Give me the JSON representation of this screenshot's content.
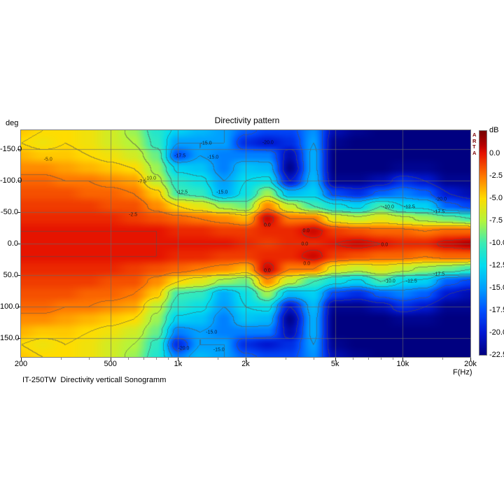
{
  "header": {
    "title": "Directivity pattern",
    "y_unit_label": "deg"
  },
  "footer": {
    "caption": "IT-250TW  Directivity verticall Sonogramm"
  },
  "watermark": {
    "text": "ARTA"
  },
  "axes": {
    "x": {
      "unit_label": "F(Hz)",
      "scale": "log",
      "range_hz": [
        200,
        20000
      ],
      "major_ticks": [
        {
          "f": 200,
          "label": "200"
        },
        {
          "f": 500,
          "label": "500"
        },
        {
          "f": 1000,
          "label": "1k"
        },
        {
          "f": 2000,
          "label": "2k"
        },
        {
          "f": 5000,
          "label": "5k"
        },
        {
          "f": 10000,
          "label": "10k"
        },
        {
          "f": 20000,
          "label": "20k"
        }
      ],
      "minor_ticks_hz": [
        300,
        400,
        600,
        700,
        800,
        900,
        1500,
        3000,
        4000,
        6000,
        7000,
        8000,
        9000,
        15000
      ],
      "gridlines_hz": [
        500,
        1000,
        2000,
        5000,
        10000
      ]
    },
    "y": {
      "range_deg": [
        -180,
        180
      ],
      "major_ticks": [
        {
          "deg": -150,
          "label": "-150.0"
        },
        {
          "deg": -100,
          "label": "-100.0"
        },
        {
          "deg": -50,
          "label": "-50.0"
        },
        {
          "deg": 0,
          "label": "0.0"
        },
        {
          "deg": 50,
          "label": "50.0"
        },
        {
          "deg": 100,
          "label": "100.0"
        },
        {
          "deg": 150,
          "label": "150.0"
        }
      ],
      "gridlines_deg": [
        -150,
        -100,
        -50,
        0,
        50,
        100,
        150
      ]
    }
  },
  "colorbar": {
    "unit_label": "dB",
    "vmax_db": 2.5,
    "vmin_db": -22.5,
    "ticks": [
      {
        "db": 0.0,
        "label": "0.0"
      },
      {
        "db": -2.5,
        "label": "-2.5"
      },
      {
        "db": -5.0,
        "label": "-5.0"
      },
      {
        "db": -7.5,
        "label": "-7.5"
      },
      {
        "db": -10.0,
        "label": "-10.0"
      },
      {
        "db": -12.5,
        "label": "-12.5"
      },
      {
        "db": -15.0,
        "label": "-15.0"
      },
      {
        "db": -17.5,
        "label": "-17.5"
      },
      {
        "db": -20.0,
        "label": "-20.0"
      },
      {
        "db": -22.5,
        "label": "-22.5"
      }
    ],
    "stops": [
      {
        "db": 2.5,
        "color": "#780000"
      },
      {
        "db": 1.0,
        "color": "#b40000"
      },
      {
        "db": 0.0,
        "color": "#e61400"
      },
      {
        "db": -2.5,
        "color": "#ff7800"
      },
      {
        "db": -5.0,
        "color": "#ffdc00"
      },
      {
        "db": -7.5,
        "color": "#b4f53c"
      },
      {
        "db": -10.0,
        "color": "#3cebb4"
      },
      {
        "db": -12.5,
        "color": "#00dcf0"
      },
      {
        "db": -15.0,
        "color": "#00a0ff"
      },
      {
        "db": -17.5,
        "color": "#0050ff"
      },
      {
        "db": -20.0,
        "color": "#0018d2"
      },
      {
        "db": -22.5,
        "color": "#000080"
      }
    ]
  },
  "chart_data": {
    "type": "heatmap",
    "title": "Directivity pattern",
    "xlabel": "F(Hz)",
    "ylabel": "deg",
    "x_scale": "log",
    "value_unit": "dB",
    "contour_interval_db": 2.5,
    "x_frequencies_hz": [
      200,
      250,
      315,
      400,
      500,
      630,
      800,
      1000,
      1250,
      1600,
      2000,
      2500,
      3150,
      4000,
      5000,
      6300,
      8000,
      10000,
      12500,
      16000,
      20000
    ],
    "y_angles_deg": [
      -180,
      -160,
      -140,
      -120,
      -100,
      -80,
      -60,
      -40,
      -20,
      0,
      20,
      40,
      60,
      80,
      100,
      120,
      140,
      160,
      180
    ],
    "values_db": [
      [
        -4.5,
        -5,
        -5,
        -5.5,
        -6.5,
        -8,
        -11,
        -13,
        -14,
        -15,
        -17,
        -18,
        -18,
        -15.5,
        -21,
        -22,
        -22.5,
        -22.5,
        -22.5,
        -22.5,
        -22.5
      ],
      [
        -5,
        -5.5,
        -5,
        -5.5,
        -6.5,
        -7.5,
        -10.5,
        -15,
        -15,
        -15,
        -19,
        -20,
        -19,
        -15,
        -22,
        -22.5,
        -22.5,
        -22.5,
        -22.5,
        -22.5,
        -22.5
      ],
      [
        -4,
        -4.5,
        -4.5,
        -5,
        -5.5,
        -6.5,
        -9,
        -17.5,
        -15,
        -16,
        -16,
        -16,
        -21,
        -14.5,
        -22.5,
        -22.5,
        -22.5,
        -22.5,
        -22.5,
        -22.5,
        -22.5
      ],
      [
        -3,
        -3,
        -3.5,
        -4,
        -4.5,
        -5,
        -8,
        -13,
        -13.5,
        -16,
        -13.5,
        -14,
        -22,
        -14.5,
        -22.5,
        -22.5,
        -22.5,
        -22,
        -22,
        -22.5,
        -22.5
      ],
      [
        -2,
        -2,
        -2.5,
        -2.5,
        -3,
        -3.5,
        -7,
        -11,
        -12,
        -15,
        -12.5,
        -12,
        -20,
        -14,
        -22,
        -22,
        -21,
        -19,
        -20,
        -22,
        -22
      ],
      [
        -1.5,
        -1.5,
        -1.5,
        -2,
        -2,
        -2.5,
        -4.5,
        -10,
        -10.5,
        -14.5,
        -12,
        -8,
        -14,
        -13,
        -18,
        -19,
        -17,
        -16,
        -17,
        -20,
        -21
      ],
      [
        -1,
        -1,
        -1,
        -1,
        -1.5,
        -1.5,
        -3,
        -5,
        -6,
        -8,
        -9,
        -3,
        -7,
        -10,
        -12,
        -13,
        -10,
        -12.5,
        -13,
        -17,
        -18
      ],
      [
        -0.5,
        -0.5,
        -0.5,
        -0.5,
        -0.5,
        -1,
        -1.5,
        -2,
        -2.5,
        -3,
        -4,
        0.5,
        -2.5,
        -2.5,
        -6,
        -7,
        -6,
        -7,
        -8,
        -9,
        -10
      ],
      [
        0,
        0,
        0,
        0,
        0,
        0,
        0,
        -0.5,
        -0.5,
        -1,
        -1,
        -0.5,
        -0.5,
        0.5,
        -1,
        -1.5,
        -2,
        -2,
        -2.5,
        -2,
        -2
      ],
      [
        0,
        0,
        0,
        0,
        0,
        0,
        0,
        0,
        0,
        0,
        -0.5,
        -1,
        -0.5,
        -0.5,
        0,
        0.5,
        0,
        -0.5,
        -0.5,
        0.5,
        1
      ],
      [
        0,
        0,
        0,
        0,
        0,
        0,
        0,
        -0.5,
        -0.5,
        -1,
        -1,
        -0.5,
        -0.5,
        0.5,
        -1,
        -1.5,
        -2,
        -2,
        -2.5,
        -2,
        -2
      ],
      [
        -0.5,
        -0.5,
        -0.5,
        -0.5,
        -0.5,
        -1,
        -1.5,
        -2,
        -2.5,
        -3,
        -4,
        0.5,
        -2.5,
        -2.5,
        -6,
        -7,
        -6,
        -7,
        -8,
        -9,
        -10
      ],
      [
        -1,
        -1,
        -1,
        -1,
        -1.5,
        -1.5,
        -3,
        -5,
        -6,
        -8,
        -9,
        -3,
        -7,
        -10,
        -12,
        -13,
        -10,
        -12.5,
        -13,
        -17,
        -18
      ],
      [
        -1.5,
        -1.5,
        -1.5,
        -2,
        -2,
        -2.5,
        -4.5,
        -10,
        -10.5,
        -14.5,
        -12,
        -8,
        -14,
        -13,
        -18,
        -19,
        -17,
        -16,
        -17,
        -20,
        -21
      ],
      [
        -2,
        -2,
        -2.5,
        -2.5,
        -3,
        -3.5,
        -7,
        -11,
        -12,
        -15,
        -12.5,
        -12,
        -20,
        -14,
        -22,
        -22,
        -21,
        -19,
        -20,
        -22,
        -22
      ],
      [
        -3,
        -3,
        -3.5,
        -4,
        -4.5,
        -5,
        -8,
        -13,
        -13.5,
        -16,
        -13.5,
        -14,
        -22,
        -14.5,
        -22.5,
        -22.5,
        -22.5,
        -22,
        -22,
        -22.5,
        -22.5
      ],
      [
        -4,
        -4.5,
        -4.5,
        -5,
        -5.5,
        -6.5,
        -9,
        -16,
        -15,
        -16,
        -16,
        -16,
        -21,
        -14.5,
        -22.5,
        -22.5,
        -22.5,
        -22.5,
        -22.5,
        -22.5,
        -22.5
      ],
      [
        -5,
        -5.5,
        -5,
        -5.5,
        -6.5,
        -7.5,
        -10.5,
        -19,
        -15,
        -15,
        -19,
        -20,
        -19,
        -15,
        -22,
        -22.5,
        -22.5,
        -22.5,
        -22.5,
        -22.5,
        -22.5
      ],
      [
        -4.5,
        -5,
        -5,
        -5.5,
        -6.5,
        -8,
        -11,
        -16,
        -14,
        -15,
        -17,
        -18,
        -18,
        -15.5,
        -21,
        -22,
        -22.5,
        -22.5,
        -22.5,
        -22.5,
        -22.5
      ]
    ],
    "contour_labels": [
      {
        "text": "-5.0",
        "f": 264,
        "deg": -133
      },
      {
        "text": "-7.5",
        "f": 692,
        "deg": -98
      },
      {
        "text": "-10.0",
        "f": 754,
        "deg": -103
      },
      {
        "text": "-2.5",
        "f": 631,
        "deg": -46
      },
      {
        "text": "-17.5",
        "f": 1020,
        "deg": -139
      },
      {
        "text": "-15.0",
        "f": 1334,
        "deg": -159
      },
      {
        "text": "-15.0",
        "f": 1430,
        "deg": -137
      },
      {
        "text": "-20.0",
        "f": 2513,
        "deg": -160
      },
      {
        "text": "-12.5",
        "f": 1042,
        "deg": -81
      },
      {
        "text": "-15.0",
        "f": 1570,
        "deg": -81
      },
      {
        "text": "0.0",
        "f": 2495,
        "deg": -29
      },
      {
        "text": "0.0",
        "f": 3715,
        "deg": -20
      },
      {
        "text": "-10.0",
        "f": 8633,
        "deg": -58
      },
      {
        "text": "-12.5",
        "f": 10700,
        "deg": -58
      },
      {
        "text": "-17.5",
        "f": 14500,
        "deg": -50
      },
      {
        "text": "-20.0",
        "f": 14800,
        "deg": -70
      },
      {
        "text": "0.0",
        "f": 3662,
        "deg": 1
      },
      {
        "text": "0.0",
        "f": 8300,
        "deg": 2
      },
      {
        "text": "0.0",
        "f": 2495,
        "deg": 43
      },
      {
        "text": "0.0",
        "f": 3741,
        "deg": 32
      },
      {
        "text": "-10.0",
        "f": 8757,
        "deg": 60
      },
      {
        "text": "-12.5",
        "f": 10930,
        "deg": 60
      },
      {
        "text": "-17.5",
        "f": 14500,
        "deg": 49
      },
      {
        "text": "-15.0",
        "f": 1410,
        "deg": 141
      },
      {
        "text": "-15.0",
        "f": 1520,
        "deg": 169
      },
      {
        "text": "-20.0",
        "f": 1060,
        "deg": 167
      }
    ]
  }
}
